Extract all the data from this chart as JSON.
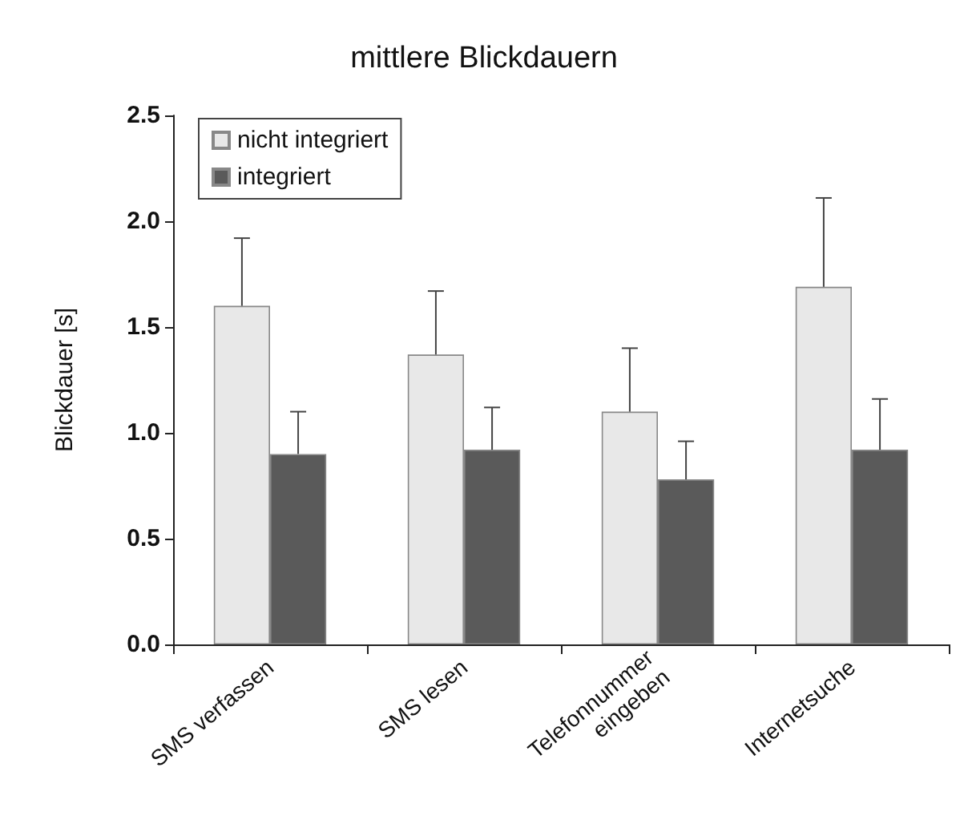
{
  "chart_data": {
    "type": "bar",
    "title": "mittlere Blickdauern",
    "ylabel": "Blickdauer [s]",
    "categories": [
      "SMS verfassen",
      "SMS lesen",
      "Telefonnummer\neingeben",
      "Internetsuche"
    ],
    "series": [
      {
        "name": "nicht integriert",
        "color": "#e8e8e8",
        "values": [
          1.6,
          1.37,
          1.1,
          1.69
        ],
        "errors": [
          [
            1.6,
            1.92
          ],
          [
            1.37,
            1.67
          ],
          [
            1.1,
            1.4
          ],
          [
            1.69,
            2.11
          ]
        ]
      },
      {
        "name": "integriert",
        "color": "#5a5a5a",
        "values": [
          0.9,
          0.92,
          0.78,
          0.92
        ],
        "errors": [
          [
            0.9,
            1.1
          ],
          [
            0.92,
            1.12
          ],
          [
            0.78,
            0.96
          ],
          [
            0.92,
            1.16
          ]
        ]
      }
    ],
    "ylim": [
      0,
      2.5
    ],
    "yticks": [
      {
        "value": 0,
        "label": "0.0"
      },
      0.5,
      {
        "value": 1,
        "label": "1.0"
      },
      1.5,
      {
        "value": 2,
        "label": "2.0"
      },
      2.5
    ],
    "grid": false,
    "legend": "top left"
  }
}
